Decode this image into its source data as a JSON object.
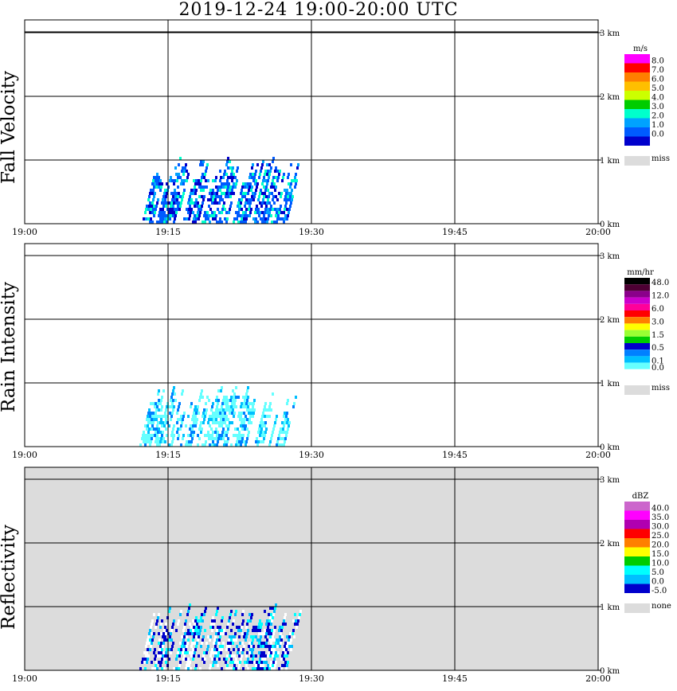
{
  "title": "2019-12-24   19:00-20:00 UTC",
  "x_ticks": [
    "19:00",
    "19:15",
    "19:30",
    "19:45",
    "20:00"
  ],
  "y_ticks": [
    "0 km",
    "1 km",
    "2 km",
    "3 km"
  ],
  "colors": {
    "grid": "#000000",
    "missing_bg": "#dcdcdc",
    "axis": "#000000"
  },
  "chart_data": [
    {
      "type": "heatmap",
      "panel_label": "Fall Velocity",
      "x_range": [
        "19:00",
        "20:00"
      ],
      "y_range_km": [
        0,
        3.2
      ],
      "legend": {
        "unit": "m/s",
        "placement": "right",
        "labels": [
          "8.0",
          "7.0",
          "6.0",
          "5.0",
          "4.0",
          "3.0",
          "2.0",
          "1.0",
          "0.0"
        ],
        "colors": [
          "#ff00ff",
          "#ff0000",
          "#ff7f00",
          "#ffbf00",
          "#ccff00",
          "#00cc00",
          "#00ffcc",
          "#00a2ff",
          "#005bff",
          "#0000cc"
        ],
        "missing_label": "miss",
        "missing_color": "#dcdcdc"
      },
      "echo": {
        "start_min": 13.5,
        "end_min": 29.0,
        "top_km": 1.05
      }
    },
    {
      "type": "heatmap",
      "panel_label": "Rain Intensity",
      "x_range": [
        "19:00",
        "20:00"
      ],
      "y_range_km": [
        0,
        3.2
      ],
      "legend": {
        "unit": "mm/hr",
        "placement": "right",
        "labels": [
          "48.0",
          "12.0",
          "6.0",
          "3.0",
          "1.5",
          "0.5",
          "0.1",
          "0.0"
        ],
        "colors": [
          "#000000",
          "#4d0033",
          "#8b008b",
          "#cc00cc",
          "#ff0099",
          "#ff0000",
          "#ff7f00",
          "#ffff00",
          "#99ff33",
          "#00cc00",
          "#0000cc",
          "#0080ff",
          "#00bfff",
          "#66ffff",
          "#ffffff"
        ],
        "missing_label": "miss",
        "missing_color": "#dcdcdc"
      },
      "echo": {
        "start_min": 13.5,
        "end_min": 29.0,
        "top_km": 0.95
      }
    },
    {
      "type": "heatmap",
      "panel_label": "Reflectivity",
      "x_range": [
        "19:00",
        "20:00"
      ],
      "y_range_km": [
        0,
        3.2
      ],
      "background": "#dcdcdc",
      "legend": {
        "unit": "dBZ",
        "placement": "right",
        "labels": [
          "40.0",
          "35.0",
          "30.0",
          "25.0",
          "20.0",
          "15.0",
          "10.0",
          "5.0",
          "0.0",
          "-5.0"
        ],
        "colors": [
          "#cc66cc",
          "#ff00ff",
          "#b000b0",
          "#ff0000",
          "#ff7f00",
          "#ffff00",
          "#00cc00",
          "#00ffff",
          "#00bfff",
          "#0000cc"
        ],
        "missing_label": "none",
        "missing_color": "#dcdcdc"
      },
      "echo": {
        "start_min": 13.5,
        "end_min": 29.0,
        "top_km": 1.05
      }
    }
  ]
}
